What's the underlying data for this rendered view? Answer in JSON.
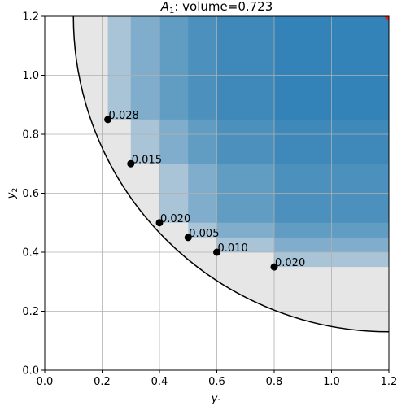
{
  "chart_data": {
    "type": "scatter",
    "title_var": "A",
    "title_sub": "1",
    "title_rest": ": volume=0.723",
    "xlabel_var": "y",
    "xlabel_sub": "1",
    "ylabel_var": "y",
    "ylabel_sub": "2",
    "xlim": [
      0.0,
      1.2
    ],
    "ylim": [
      0.0,
      1.2
    ],
    "xticks": [
      "0.0",
      "0.2",
      "0.4",
      "0.6",
      "0.8",
      "1.0",
      "1.2"
    ],
    "yticks": [
      "0.0",
      "0.2",
      "0.4",
      "0.6",
      "0.8",
      "1.0",
      "1.2"
    ],
    "grid": true,
    "boundary_circle": {
      "center": [
        1.2,
        1.2
      ],
      "radius": 1.1
    },
    "points": [
      {
        "x": 0.22,
        "y": 0.85,
        "label": "0.028"
      },
      {
        "x": 0.3,
        "y": 0.7,
        "label": "0.015"
      },
      {
        "x": 0.4,
        "y": 0.5,
        "label": "0.020"
      },
      {
        "x": 0.5,
        "y": 0.45,
        "label": "0.005"
      },
      {
        "x": 0.6,
        "y": 0.4,
        "label": "0.010"
      },
      {
        "x": 0.8,
        "y": 0.35,
        "label": "0.020"
      }
    ],
    "reference_point": {
      "x": 1.2,
      "y": 1.2
    },
    "colors": {
      "region": "#1f77b4",
      "circle_fill": "#e6e6e6",
      "grid": "#b0b0b0",
      "points": "#000000",
      "reference": "#d62728"
    }
  }
}
